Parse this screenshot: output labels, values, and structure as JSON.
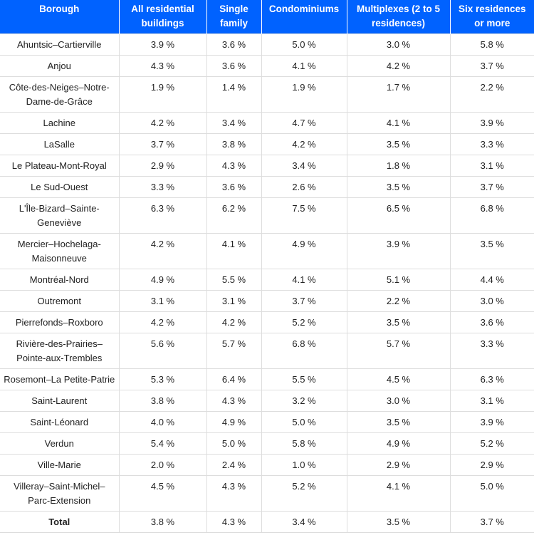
{
  "headers": [
    "Borough",
    "All residential buildings",
    "Single family",
    "Condominiums",
    "Multiplexes (2 to 5 residences)",
    "Six residences or more"
  ],
  "rows": [
    [
      "Ahuntsic–Cartierville",
      "3.9 %",
      "3.6 %",
      "5.0 %",
      "3.0 %",
      "5.8 %"
    ],
    [
      "Anjou",
      "4.3 %",
      "3.6 %",
      "4.1 %",
      "4.2 %",
      "3.7 %"
    ],
    [
      "Côte-des-Neiges–Notre-Dame-de-Grâce",
      "1.9 %",
      "1.4 %",
      "1.9 %",
      "1.7 %",
      "2.2 %"
    ],
    [
      "Lachine",
      "4.2 %",
      "3.4 %",
      "4.7 %",
      "4.1 %",
      "3.9 %"
    ],
    [
      "LaSalle",
      "3.7 %",
      "3.8 %",
      "4.2 %",
      "3.5 %",
      "3.3 %"
    ],
    [
      "Le Plateau-Mont-Royal",
      "2.9 %",
      "4.3 %",
      "3.4 %",
      "1.8 %",
      "3.1 %"
    ],
    [
      "Le Sud-Ouest",
      "3.3 %",
      "3.6 %",
      "2.6 %",
      "3.5 %",
      "3.7 %"
    ],
    [
      "L'Île-Bizard–Sainte-Geneviève",
      "6.3 %",
      "6.2 %",
      "7.5 %",
      "6.5 %",
      "6.8 %"
    ],
    [
      "Mercier–Hochelaga-Maisonneuve",
      "4.2 %",
      "4.1 %",
      "4.9 %",
      "3.9 %",
      "3.5 %"
    ],
    [
      "Montréal-Nord",
      "4.9 %",
      "5.5 %",
      "4.1 %",
      "5.1 %",
      "4.4 %"
    ],
    [
      "Outremont",
      "3.1 %",
      "3.1 %",
      "3.7 %",
      "2.2 %",
      "3.0 %"
    ],
    [
      "Pierrefonds–Roxboro",
      "4.2 %",
      "4.2 %",
      "5.2 %",
      "3.5 %",
      "3.6 %"
    ],
    [
      "Rivière-des-Prairies–Pointe-aux-Trembles",
      "5.6 %",
      "5.7 %",
      "6.8 %",
      "5.7 %",
      "3.3 %"
    ],
    [
      "Rosemont–La Petite-Patrie",
      "5.3 %",
      "6.4 %",
      "5.5 %",
      "4.5 %",
      "6.3 %"
    ],
    [
      "Saint-Laurent",
      "3.8 %",
      "4.3 %",
      "3.2 %",
      "3.0 %",
      "3.1 %"
    ],
    [
      "Saint-Léonard",
      "4.0 %",
      "4.9 %",
      "5.0 %",
      "3.5 %",
      "3.9 %"
    ],
    [
      "Verdun",
      "5.4 %",
      "5.0 %",
      "5.8 %",
      "4.9 %",
      "5.2 %"
    ],
    [
      "Ville-Marie",
      "2.0 %",
      "2.4 %",
      "1.0 %",
      "2.9 %",
      "2.9 %"
    ],
    [
      "Villeray–Saint-Michel–Parc-Extension",
      "4.5 %",
      "4.3 %",
      "5.2 %",
      "4.1 %",
      "5.0 %"
    ]
  ],
  "total": [
    "Total",
    "3.8 %",
    "4.3 %",
    "3.4 %",
    "3.5 %",
    "3.7 %"
  ],
  "colors": {
    "header_bg": "#0062ff",
    "border": "#dddddd"
  }
}
